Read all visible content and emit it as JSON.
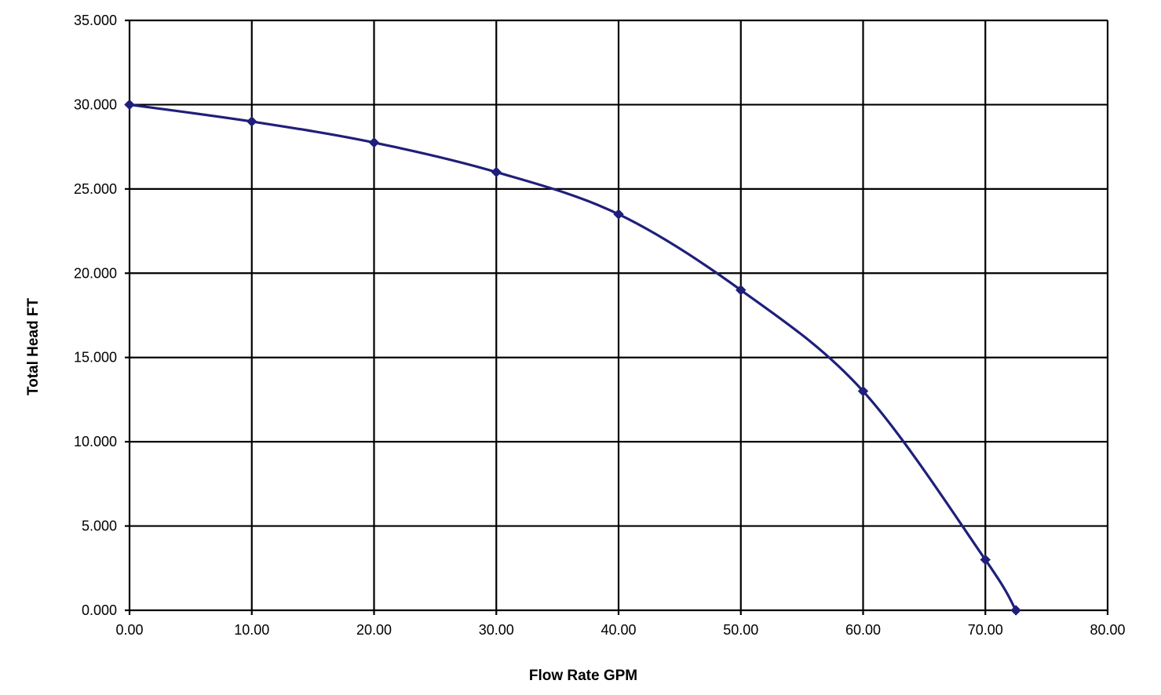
{
  "chart_data": {
    "type": "scatter",
    "title": "",
    "xlabel": "Flow Rate GPM",
    "ylabel": "Total Head FT",
    "xlim": [
      0,
      80
    ],
    "ylim": [
      0,
      35
    ],
    "x_ticks": [
      "0.00",
      "10.00",
      "20.00",
      "30.00",
      "40.00",
      "50.00",
      "60.00",
      "70.00",
      "80.00"
    ],
    "y_ticks": [
      "0.000",
      "5.000",
      "10.000",
      "15.000",
      "20.000",
      "25.000",
      "30.000",
      "35.000"
    ],
    "grid": true,
    "legend": "none",
    "series_color": "#1f1f7a",
    "series": [
      {
        "x": [
          0,
          10,
          20,
          30,
          40,
          50,
          60,
          70,
          72.5
        ],
        "y": [
          30.0,
          29.0,
          27.75,
          26.0,
          23.5,
          19.0,
          13.0,
          3.0,
          0.0
        ]
      }
    ]
  }
}
